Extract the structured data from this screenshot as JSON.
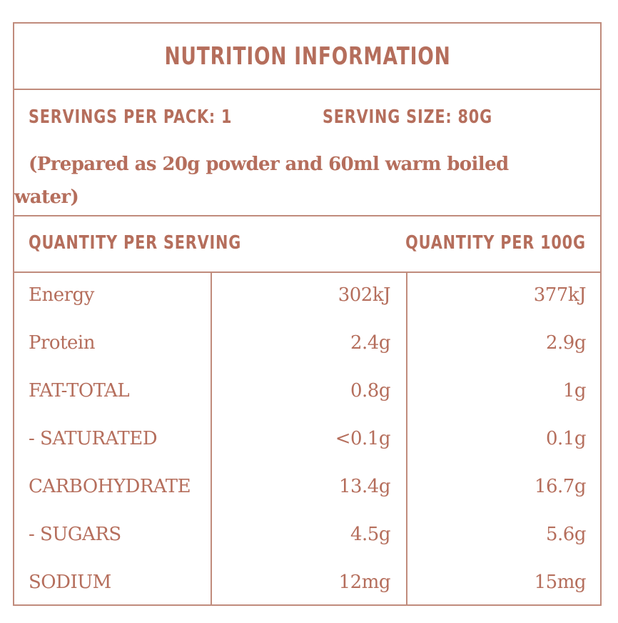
{
  "title": "NUTRITION INFORMATION",
  "servings_per_pack": "SERVINGS PER PACK: 1",
  "serving_size": "SERVING SIZE: 80G",
  "preparation_note": "(Prepared as 20g powder and 60ml warm boiled water)",
  "columns": {
    "per_serving": "QUANTITY PER SERVING",
    "per_100g": "QUANTITY PER 100G"
  },
  "rows": [
    {
      "nutrient": "Energy",
      "per_serving": "302kJ",
      "per_100g": "377kJ"
    },
    {
      "nutrient": "Protein",
      "per_serving": "2.4g",
      "per_100g": "2.9g"
    },
    {
      "nutrient": "FAT-TOTAL",
      "per_serving": "0.8g",
      "per_100g": "1g"
    },
    {
      "nutrient": "- SATURATED",
      "per_serving": "<0.1g",
      "per_100g": "0.1g"
    },
    {
      "nutrient": "CARBOHYDRATE",
      "per_serving": "13.4g",
      "per_100g": "16.7g"
    },
    {
      "nutrient": "- SUGARS",
      "per_serving": "4.5g",
      "per_100g": "5.6g"
    },
    {
      "nutrient": "SODIUM",
      "per_serving": "12mg",
      "per_100g": "15mg"
    }
  ],
  "colors": {
    "text": "#b56e5c",
    "border": "#c08b7c"
  }
}
